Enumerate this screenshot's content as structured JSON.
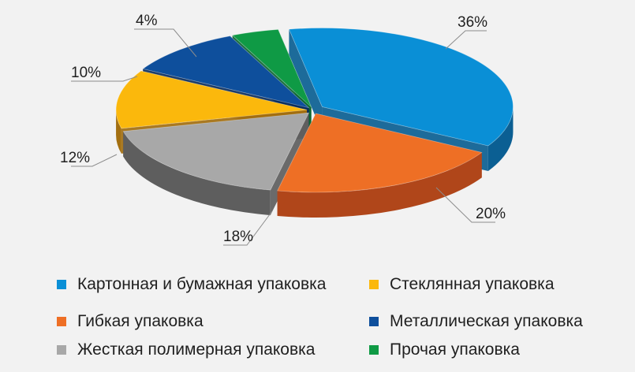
{
  "chart_data": {
    "type": "pie",
    "style": "3d-exploded",
    "title": "",
    "unit": "%",
    "legend_placement": "bottom",
    "slices": [
      {
        "label": "Картонная  и бумажная упаковка",
        "value": 36,
        "value_label": "36%",
        "color": "#0a8fd6",
        "side_color": "#0b5f93"
      },
      {
        "label": "Гибкая упаковка",
        "value": 20,
        "value_label": "20%",
        "color": "#ee6f25",
        "side_color": "#b0461a"
      },
      {
        "label": "Жесткая полимерная упаковка",
        "value": 18,
        "value_label": "18%",
        "color": "#a8a8a8",
        "side_color": "#5e5e5e"
      },
      {
        "label": "Стеклянная  упаковка",
        "value": 12,
        "value_label": "12%",
        "color": "#fbb80c",
        "side_color": "#a36f10"
      },
      {
        "label": "Металлическая  упаковка",
        "value": 10,
        "value_label": "10%",
        "color": "#0e4f9c",
        "side_color": "#0a2e5e"
      },
      {
        "label": "Прочая упаковка",
        "value": 4,
        "value_label": "4%",
        "color": "#0f9a45",
        "side_color": "#0a6630"
      }
    ]
  }
}
